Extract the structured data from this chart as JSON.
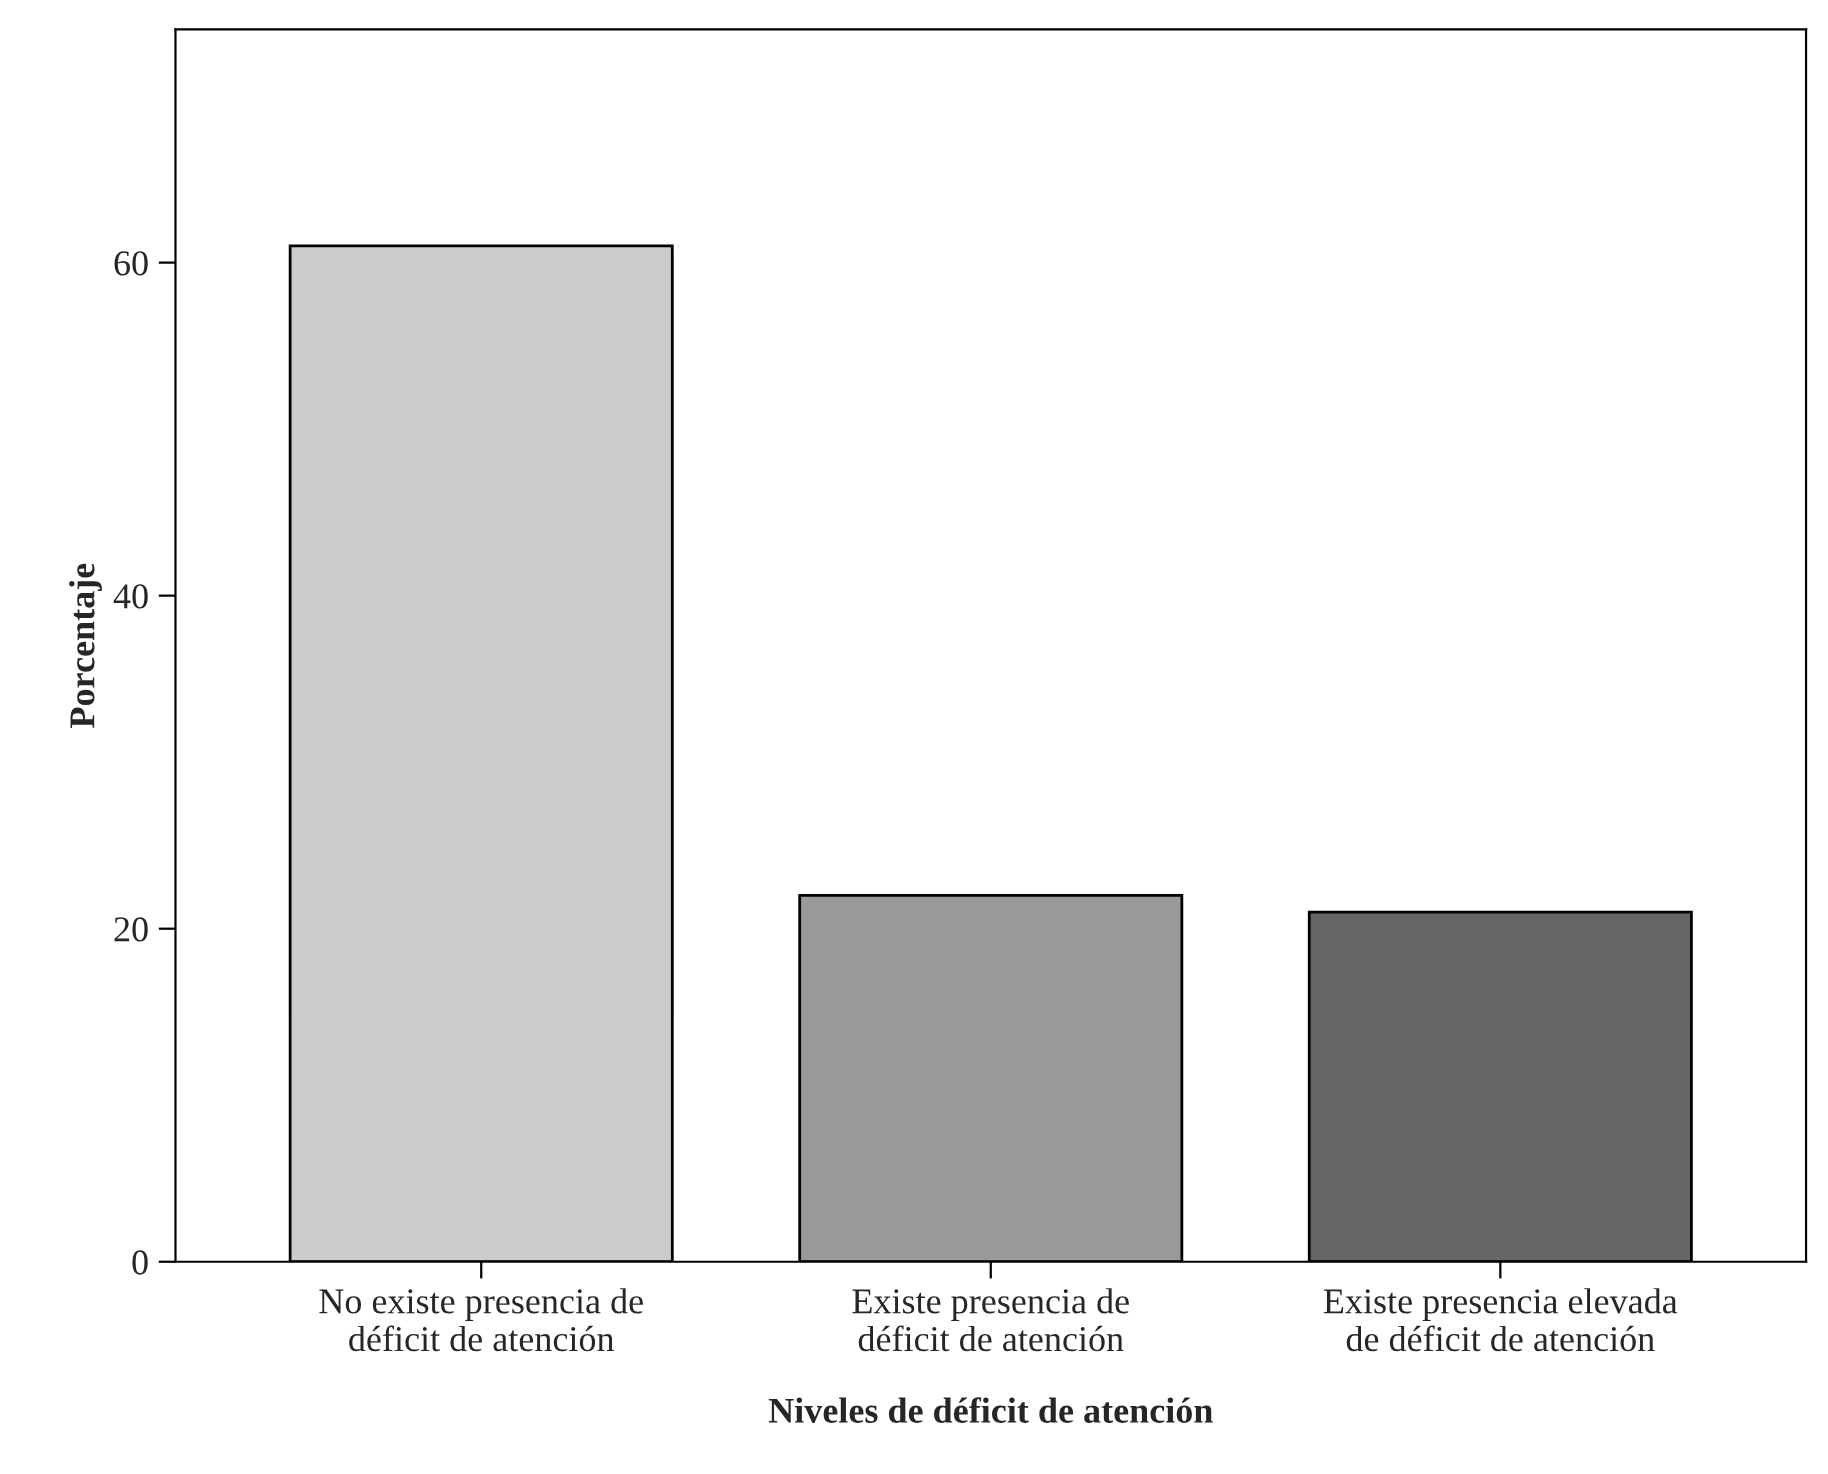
{
  "chart_data": {
    "type": "bar",
    "xlabel": "Niveles de déficit de atención",
    "ylabel": "Porcentaje",
    "categories": [
      "No existe presencia de\ndéficit de atención",
      "Existe presencia de\ndéficit de atención",
      "Existe presencia elevada\nde déficit de atención"
    ],
    "values": [
      61,
      22,
      21
    ],
    "colors": [
      "#cccccc",
      "#999999",
      "#666666"
    ],
    "ylim": [
      0,
      74
    ],
    "yticks": [
      0,
      20,
      40,
      60
    ],
    "grid": false
  }
}
